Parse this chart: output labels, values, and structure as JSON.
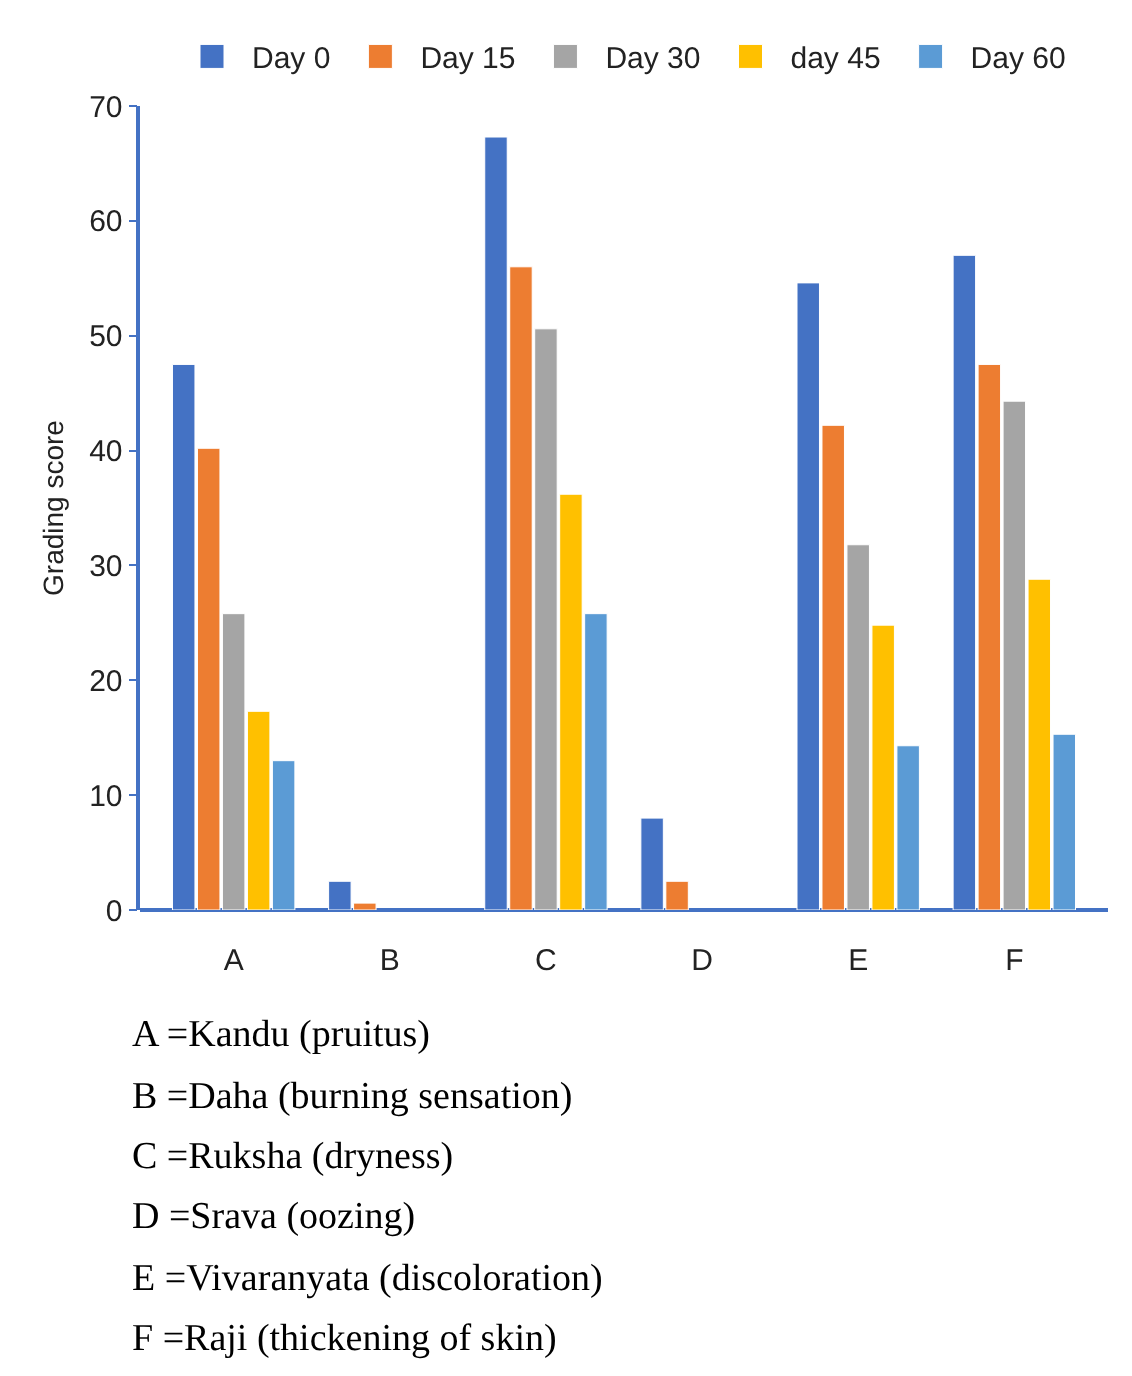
{
  "chart_data": {
    "type": "bar",
    "ylabel": "Grading score",
    "categories": [
      "A",
      "B",
      "C",
      "D",
      "E",
      "F"
    ],
    "series": [
      {
        "name": "Day 0",
        "color": "#4472c4",
        "values": [
          47.5,
          2.5,
          67.3,
          8,
          54.6,
          57
        ]
      },
      {
        "name": "Day 15",
        "color": "#ed7d31",
        "values": [
          40.2,
          0.6,
          56,
          2.5,
          42.2,
          47.5
        ]
      },
      {
        "name": "Day 30",
        "color": "#a5a5a5",
        "values": [
          25.8,
          null,
          50.6,
          null,
          31.8,
          44.3
        ]
      },
      {
        "name": "day 45",
        "color": "#ffc000",
        "values": [
          17.3,
          null,
          36.2,
          null,
          24.8,
          28.8
        ]
      },
      {
        "name": "Day 60",
        "color": "#5b9bd5",
        "values": [
          13,
          null,
          25.8,
          null,
          14.3,
          15.3
        ]
      }
    ],
    "ylim": [
      0,
      70
    ],
    "yticks": [
      0,
      10,
      20,
      30,
      40,
      50,
      60,
      70
    ],
    "grid": false,
    "legend": "top",
    "annotations": [
      "A =Kandu (pruitus)",
      "B =Daha (burning sensation)",
      "C =Ruksha (dryness)",
      "D =Srava (oozing)",
      "E =Vivaranyata (discoloration)",
      "F =Raji (thickening of skin)"
    ]
  }
}
